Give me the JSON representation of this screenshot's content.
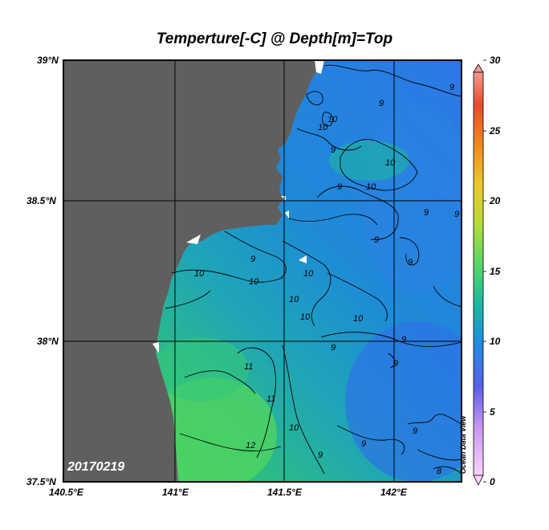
{
  "title": "Temperture[-C] @ Depth[m]=Top",
  "date_stamp": "20170219",
  "credit": "Ocean Data View",
  "latitude_labels": [
    "39°N",
    "38.5°N",
    "38°N",
    "37.5°N"
  ],
  "longitude_labels": [
    "140.5°E",
    "141°E",
    "141.5°E",
    "142°E"
  ],
  "colorbar": {
    "min": 0,
    "max": 30,
    "tick_labels": [
      "30",
      "25",
      "20",
      "15",
      "10",
      "5",
      "0"
    ],
    "colors": [
      "#f7c9f7",
      "#b58ae6",
      "#3f62e8",
      "#1e8ee0",
      "#17b5a4",
      "#5fd66b",
      "#b5d93a",
      "#e8c22c",
      "#ef8a1e",
      "#e84a2a",
      "#f08c84"
    ]
  },
  "contour_labels": [
    "9",
    "10",
    "11",
    "12",
    "13",
    "8"
  ],
  "colors": {
    "land": "#5f5f5f",
    "ocean_cold": "#2a7fe0",
    "ocean_warm": "#2ab890",
    "ocean_green": "#4fd25e"
  }
}
